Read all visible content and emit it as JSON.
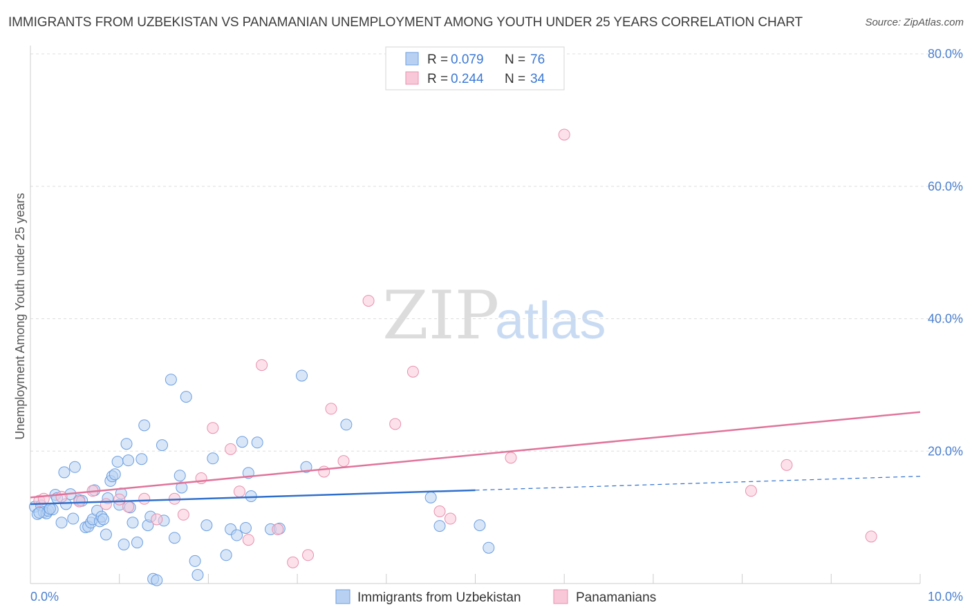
{
  "title": "IMMIGRANTS FROM UZBEKISTAN VS PANAMANIAN UNEMPLOYMENT AMONG YOUTH UNDER 25 YEARS CORRELATION CHART",
  "source": "Source: ZipAtlas.com",
  "watermark": {
    "zip": "ZIP",
    "atlas": "atlas"
  },
  "colors": {
    "blue_fill": "#b8d1f2",
    "blue_stroke": "#6b9ee0",
    "blue_line": "#2f6fcc",
    "pink_fill": "#f9c8d8",
    "pink_stroke": "#e890ad",
    "pink_line": "#e0739a",
    "grid": "#dddddd",
    "axis_text": "#4a7fcf"
  },
  "legend": {
    "items": [
      {
        "r_label": "R = ",
        "r_value": "0.079",
        "n_label": "N = ",
        "n_value": "76"
      },
      {
        "r_label": "R = ",
        "r_value": "0.244",
        "n_label": "N = ",
        "n_value": "34"
      }
    ]
  },
  "bottom_legend": [
    "Immigrants from Uzbekistan",
    "Panamanians"
  ],
  "chart_data": {
    "type": "scatter",
    "title": "IMMIGRANTS FROM UZBEKISTAN VS PANAMANIAN UNEMPLOYMENT AMONG YOUTH UNDER 25 YEARS CORRELATION CHART",
    "xlabel": "",
    "ylabel": "Unemployment Among Youth under 25 years",
    "xlim": [
      0,
      10
    ],
    "ylim": [
      0,
      80
    ],
    "x_tick_labels": [
      "0.0%",
      "10.0%"
    ],
    "y_tick_labels": [
      "20.0%",
      "40.0%",
      "60.0%",
      "80.0%"
    ],
    "y_ticks": [
      20,
      40,
      60,
      80
    ],
    "series": [
      {
        "name": "Immigrants from Uzbekistan",
        "r": 0.079,
        "n": 76,
        "trend": {
          "x0": 0,
          "y0": 12.0,
          "x1": 5,
          "y1": 14.1,
          "dashed_to_x": 10,
          "dashed_to_y": 16.2
        },
        "points": [
          [
            0.05,
            11.6
          ],
          [
            0.08,
            10.5
          ],
          [
            0.12,
            11.8
          ],
          [
            0.15,
            10.8
          ],
          [
            0.18,
            10.6
          ],
          [
            0.2,
            11.0
          ],
          [
            0.25,
            11.2
          ],
          [
            0.28,
            13.4
          ],
          [
            0.3,
            12.9
          ],
          [
            0.35,
            9.2
          ],
          [
            0.38,
            16.8
          ],
          [
            0.4,
            12.0
          ],
          [
            0.45,
            13.5
          ],
          [
            0.48,
            9.8
          ],
          [
            0.5,
            17.6
          ],
          [
            0.55,
            12.6
          ],
          [
            0.58,
            12.5
          ],
          [
            0.62,
            8.5
          ],
          [
            0.65,
            8.6
          ],
          [
            0.68,
            9.2
          ],
          [
            0.7,
            9.7
          ],
          [
            0.72,
            14.1
          ],
          [
            0.75,
            11.0
          ],
          [
            0.78,
            9.4
          ],
          [
            0.8,
            10.1
          ],
          [
            0.82,
            9.7
          ],
          [
            0.85,
            7.4
          ],
          [
            0.87,
            12.9
          ],
          [
            0.9,
            15.5
          ],
          [
            0.92,
            16.2
          ],
          [
            0.95,
            16.5
          ],
          [
            0.98,
            18.4
          ],
          [
            1.0,
            11.9
          ],
          [
            1.02,
            13.6
          ],
          [
            1.05,
            5.9
          ],
          [
            1.08,
            21.1
          ],
          [
            1.1,
            18.6
          ],
          [
            1.12,
            11.5
          ],
          [
            1.15,
            9.2
          ],
          [
            1.2,
            6.2
          ],
          [
            1.25,
            18.8
          ],
          [
            1.28,
            23.9
          ],
          [
            1.32,
            8.8
          ],
          [
            1.35,
            10.1
          ],
          [
            1.38,
            0.7
          ],
          [
            1.42,
            0.5
          ],
          [
            1.48,
            20.9
          ],
          [
            1.5,
            9.5
          ],
          [
            1.58,
            30.8
          ],
          [
            1.62,
            6.9
          ],
          [
            1.68,
            16.3
          ],
          [
            1.7,
            14.5
          ],
          [
            1.75,
            28.2
          ],
          [
            1.85,
            3.4
          ],
          [
            1.88,
            1.3
          ],
          [
            1.98,
            8.8
          ],
          [
            2.05,
            18.9
          ],
          [
            2.2,
            4.3
          ],
          [
            2.25,
            8.2
          ],
          [
            2.32,
            7.3
          ],
          [
            2.38,
            21.4
          ],
          [
            2.42,
            8.4
          ],
          [
            2.45,
            16.7
          ],
          [
            2.48,
            13.2
          ],
          [
            2.55,
            21.3
          ],
          [
            2.7,
            8.2
          ],
          [
            2.8,
            8.3
          ],
          [
            3.05,
            31.4
          ],
          [
            3.1,
            17.6
          ],
          [
            3.55,
            24.0
          ],
          [
            4.5,
            13.0
          ],
          [
            4.6,
            8.7
          ],
          [
            5.05,
            8.8
          ],
          [
            5.15,
            5.4
          ],
          [
            0.1,
            10.7
          ],
          [
            0.22,
            11.3
          ]
        ]
      },
      {
        "name": "Panamanians",
        "r": 0.244,
        "n": 34,
        "trend": {
          "x0": 0,
          "y0": 13.0,
          "x1": 10,
          "y1": 25.9
        },
        "points": [
          [
            0.1,
            12.5
          ],
          [
            0.15,
            12.8
          ],
          [
            0.35,
            13.1
          ],
          [
            0.55,
            12.4
          ],
          [
            0.7,
            14.0
          ],
          [
            0.85,
            12.0
          ],
          [
            1.0,
            12.7
          ],
          [
            1.1,
            11.6
          ],
          [
            1.28,
            12.8
          ],
          [
            1.42,
            9.7
          ],
          [
            1.62,
            12.8
          ],
          [
            1.72,
            10.4
          ],
          [
            1.92,
            15.9
          ],
          [
            2.05,
            23.5
          ],
          [
            2.25,
            20.3
          ],
          [
            2.35,
            13.9
          ],
          [
            2.45,
            6.6
          ],
          [
            2.6,
            33.0
          ],
          [
            2.78,
            8.2
          ],
          [
            2.95,
            3.2
          ],
          [
            3.12,
            4.3
          ],
          [
            3.3,
            16.9
          ],
          [
            3.38,
            26.4
          ],
          [
            3.52,
            18.5
          ],
          [
            3.8,
            42.7
          ],
          [
            4.1,
            24.1
          ],
          [
            4.3,
            32.0
          ],
          [
            4.6,
            10.9
          ],
          [
            4.72,
            9.8
          ],
          [
            5.4,
            19.0
          ],
          [
            6.0,
            67.8
          ],
          [
            8.1,
            14.0
          ],
          [
            8.5,
            17.9
          ],
          [
            9.45,
            7.1
          ]
        ]
      }
    ]
  }
}
